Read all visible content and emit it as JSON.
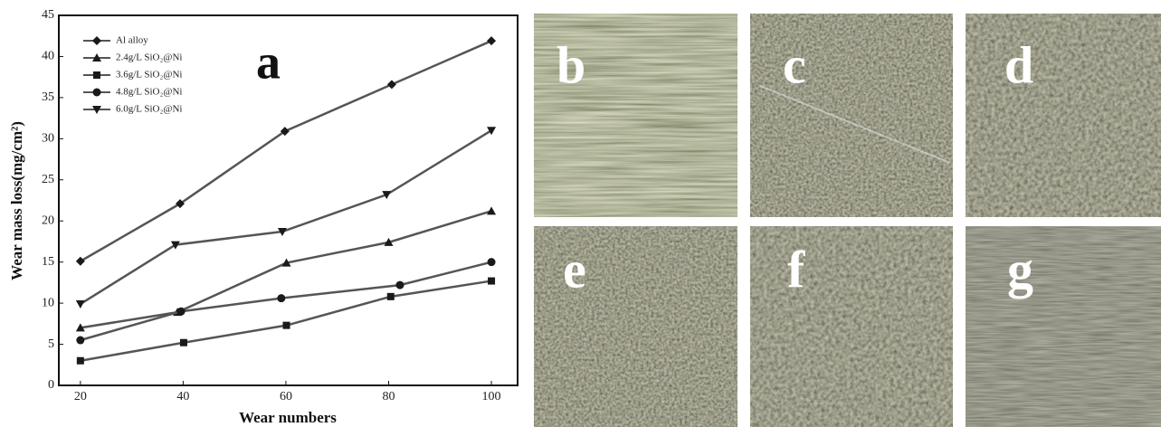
{
  "chart_data": {
    "type": "line",
    "panel_label": "a",
    "xlabel": "Wear numbers",
    "ylabel": "Wear mass loss(mg/cm²)",
    "xlim": [
      15.8,
      105.1
    ],
    "xticks": [
      20,
      40,
      60,
      80,
      100
    ],
    "ylim": [
      0,
      45
    ],
    "yticks": [
      0,
      5,
      10,
      15,
      20,
      25,
      30,
      35,
      40,
      45
    ],
    "legend": "upper left",
    "series": [
      {
        "name": "Al alloy",
        "color": "#555555",
        "marker": "diamond",
        "x": [
          20,
          39.4,
          59.8,
          80.6,
          100
        ],
        "values": [
          15.1,
          22.1,
          30.9,
          36.6,
          41.9
        ]
      },
      {
        "name": "2.4g/L SiO₂@Ni",
        "color": "#555555",
        "marker": "triangle",
        "x": [
          20,
          38.9,
          60.1,
          80,
          100
        ],
        "values": [
          7.0,
          8.9,
          14.9,
          17.4,
          21.2
        ]
      },
      {
        "name": "3.6g/L SiO₂@Ni",
        "color": "#555555",
        "marker": "square",
        "x": [
          20,
          40.1,
          60.1,
          80.4,
          100
        ],
        "values": [
          3.0,
          5.2,
          7.3,
          10.8,
          12.7
        ]
      },
      {
        "name": "4.8g/L SiO₂@Ni",
        "color": "#555555",
        "marker": "circle",
        "x": [
          20,
          39.6,
          59.1,
          82.2,
          100
        ],
        "values": [
          5.5,
          9.0,
          10.6,
          12.2,
          15.0
        ]
      },
      {
        "name": "6.0g/L SiO₂@Ni",
        "color": "#555555",
        "marker": "triangle-down",
        "x": [
          20,
          38.5,
          59.3,
          79.6,
          100
        ],
        "values": [
          9.9,
          17.1,
          18.7,
          23.2,
          31.0
        ]
      }
    ]
  },
  "panels": [
    {
      "label": "b"
    },
    {
      "label": "c"
    },
    {
      "label": "d"
    },
    {
      "label": "e"
    },
    {
      "label": "f"
    },
    {
      "label": "g"
    }
  ]
}
